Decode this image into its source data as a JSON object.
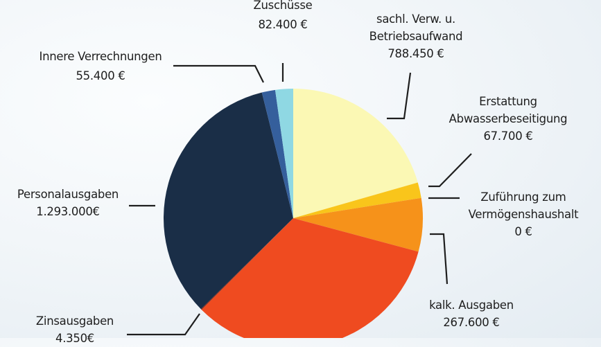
{
  "chart_data": {
    "type": "pie",
    "title": "",
    "currency": "€",
    "start_angle_deg": 0,
    "direction": "clockwise",
    "slices": [
      {
        "name": "sachl. Verw. u. Betriebsaufwand",
        "label_lines": [
          "sachl. Verw. u.",
          "Betriebsaufwand",
          "788.450 €"
        ],
        "value": 788450,
        "color": "#fbf8b4",
        "start": 0,
        "end": 74
      },
      {
        "name": "Erstattung Abwasserbeseitigung",
        "label_lines": [
          "Erstattung",
          "Abwasserbeseitigung",
          "67.700 €"
        ],
        "value": 67700,
        "color": "#f9c51b",
        "start": 74,
        "end": 81
      },
      {
        "name": "Zuführung zum Vermögenshaushalt",
        "label_lines": [
          "Zuführung zum",
          "Vermögenshaushalt",
          "0 €"
        ],
        "value": 0,
        "color": "#f9c51b",
        "start": 81,
        "end": 81
      },
      {
        "name": "kalk. Ausgaben",
        "label_lines": [
          "kalk. Ausgaben",
          "267.600 €"
        ],
        "value": 267600,
        "color": "#f6921a",
        "start": 81,
        "end": 105
      },
      {
        "name": "(unlabeled)",
        "label_lines": [],
        "value": null,
        "color": "#ef4b20",
        "start": 105,
        "end": 225
      },
      {
        "name": "Zinsausgaben",
        "label_lines": [
          "Zinsausgaben",
          "4.350€"
        ],
        "value": 4350,
        "color": "#8a2a1c",
        "start": 225,
        "end": 225.4
      },
      {
        "name": "Personalausgaben",
        "label_lines": [
          "Personalausgaben",
          "1.293.000€"
        ],
        "value": 1293000,
        "color": "#1a2e47",
        "start": 225.4,
        "end": 346
      },
      {
        "name": "Innere Verrechnungen",
        "label_lines": [
          "Innere Verrechnungen",
          "55.400 €"
        ],
        "value": 55400,
        "color": "#355f9c",
        "start": 346,
        "end": 352
      },
      {
        "name": "Zuschüsse",
        "label_lines": [
          "Zuschüsse",
          "82.400 €"
        ],
        "value": 82400,
        "color": "#8fd8e3",
        "start": 352,
        "end": 360
      }
    ],
    "legend": "none (callout labels with leader lines)",
    "grid": false
  },
  "labels": {
    "zuschuesse": {
      "l1": "Zuschüsse",
      "l2": "82.400 €"
    },
    "sachl": {
      "l1": "sachl. Verw. u.",
      "l2": "Betriebsaufwand",
      "l3": "788.450 €"
    },
    "innere": {
      "l1": "Innere Verrechnungen",
      "l2": "55.400 €"
    },
    "erstattung": {
      "l1": "Erstattung",
      "l2": "Abwasserbeseitigung",
      "l3": "67.700 €"
    },
    "zufuehrung": {
      "l1": "Zuführung zum",
      "l2": "Vermögenshaushalt",
      "l3": "0 €"
    },
    "personal": {
      "l1": "Personalausgaben",
      "l2": "1.293.000€"
    },
    "kalk": {
      "l1": "kalk. Ausgaben",
      "l2": "267.600 €"
    },
    "zins": {
      "l1": "Zinsausgaben",
      "l2": "4.350€"
    }
  }
}
